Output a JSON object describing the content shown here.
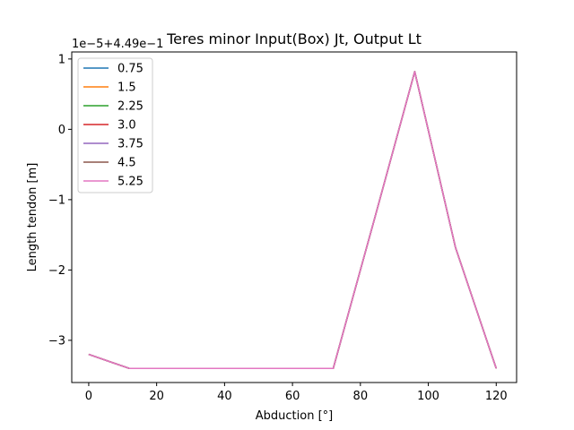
{
  "chart_data": {
    "type": "line",
    "title": "Teres minor Input(Box) Jt, Output Lt",
    "xlabel": "Abduction [°]",
    "ylabel": "Length tendon [m]",
    "y_offset_text": "1e−5+4.49e−1",
    "xlim": [
      -5,
      126
    ],
    "ylim": [
      -3.6,
      1.1
    ],
    "x_ticks": [
      0,
      20,
      40,
      60,
      80,
      100,
      120
    ],
    "x_tick_labels": [
      "0",
      "20",
      "40",
      "60",
      "80",
      "100",
      "120"
    ],
    "y_ticks": [
      -3,
      -2,
      -1,
      0,
      1
    ],
    "y_tick_labels": [
      "−3",
      "−2",
      "−1",
      "0",
      "1"
    ],
    "grid": false,
    "legend_position": "upper-left",
    "x": [
      0,
      12,
      24,
      36,
      48,
      60,
      72,
      84,
      96,
      108,
      120
    ],
    "series": [
      {
        "name": "0.75",
        "color": "#1f77b4",
        "values": [
          -3.2,
          -3.4,
          -3.4,
          -3.4,
          -3.4,
          -3.4,
          -3.4,
          -1.3,
          0.82,
          -1.68,
          -3.4
        ]
      },
      {
        "name": "1.5",
        "color": "#ff7f0e",
        "values": [
          -3.2,
          -3.4,
          -3.4,
          -3.4,
          -3.4,
          -3.4,
          -3.4,
          -1.3,
          0.82,
          -1.68,
          -3.4
        ]
      },
      {
        "name": "2.25",
        "color": "#2ca02c",
        "values": [
          -3.2,
          -3.4,
          -3.4,
          -3.4,
          -3.4,
          -3.4,
          -3.4,
          -1.3,
          0.82,
          -1.68,
          -3.4
        ]
      },
      {
        "name": "3.0",
        "color": "#d62728",
        "values": [
          -3.2,
          -3.4,
          -3.4,
          -3.4,
          -3.4,
          -3.4,
          -3.4,
          -1.3,
          0.82,
          -1.68,
          -3.4
        ]
      },
      {
        "name": "3.75",
        "color": "#9467bd",
        "values": [
          -3.2,
          -3.4,
          -3.4,
          -3.4,
          -3.4,
          -3.4,
          -3.4,
          -1.3,
          0.82,
          -1.68,
          -3.4
        ]
      },
      {
        "name": "4.5",
        "color": "#8c564b",
        "values": [
          -3.2,
          -3.4,
          -3.4,
          -3.4,
          -3.4,
          -3.4,
          -3.4,
          -1.3,
          0.82,
          -1.68,
          -3.4
        ]
      },
      {
        "name": "5.25",
        "color": "#e377c2",
        "values": [
          -3.2,
          -3.4,
          -3.4,
          -3.4,
          -3.4,
          -3.4,
          -3.4,
          -1.3,
          0.82,
          -1.68,
          -3.4
        ]
      }
    ]
  }
}
